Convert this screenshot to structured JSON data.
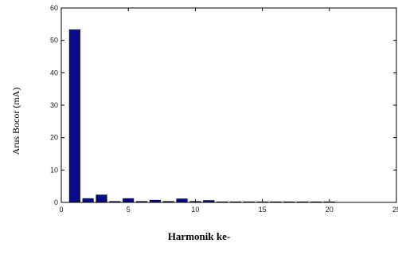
{
  "chart_data": {
    "type": "bar",
    "xlabel": "Harmonik ke-",
    "ylabel": "Arus Bocor (mA)",
    "xlim": [
      0,
      25
    ],
    "ylim": [
      0,
      60
    ],
    "xticks": [
      0,
      5,
      10,
      15,
      20,
      25
    ],
    "yticks": [
      0,
      10,
      20,
      30,
      40,
      50,
      60
    ],
    "grid": false,
    "colors": {
      "bar_fill": "#0b0b8a",
      "bar_stroke": "#000000"
    },
    "series": [
      {
        "x": [
          1,
          2,
          3,
          4,
          5,
          6,
          7,
          8,
          9,
          10,
          11,
          12,
          13,
          14,
          15,
          16,
          17,
          18,
          19,
          20
        ],
        "values": [
          53.3,
          1.2,
          2.3,
          0.3,
          1.2,
          0.3,
          0.7,
          0.3,
          1.1,
          0.3,
          0.6,
          0.2,
          0.2,
          0.2,
          0.2,
          0.2,
          0.2,
          0.2,
          0.2,
          0.2
        ]
      }
    ]
  }
}
